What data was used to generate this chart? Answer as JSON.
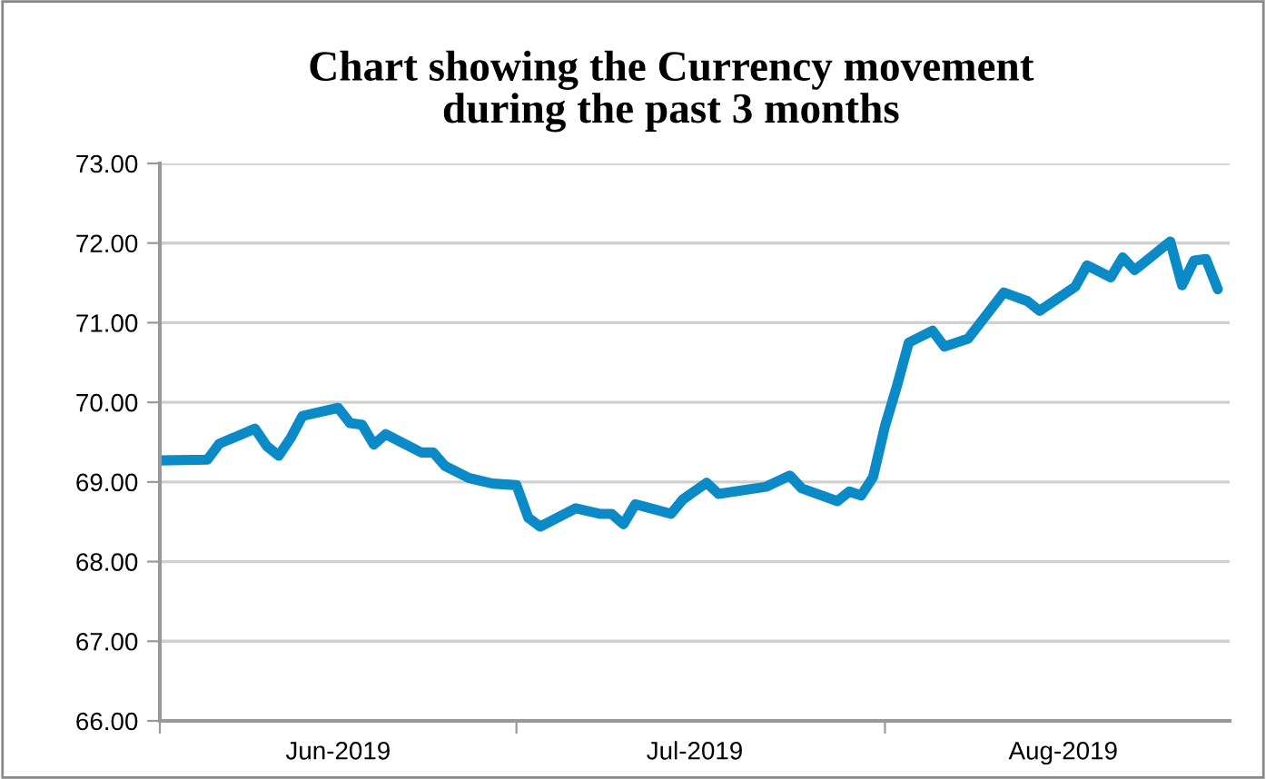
{
  "chart_data": {
    "type": "line",
    "title": "Chart showing the Currency movement\nduring the past 3 months",
    "x": [
      "2019-06-01",
      "2019-06-05",
      "2019-06-06",
      "2019-06-09",
      "2019-06-10",
      "2019-06-11",
      "2019-06-12",
      "2019-06-13",
      "2019-06-16",
      "2019-06-17",
      "2019-06-18",
      "2019-06-19",
      "2019-06-20",
      "2019-06-23",
      "2019-06-24",
      "2019-06-25",
      "2019-06-27",
      "2019-06-29",
      "2019-07-01",
      "2019-07-02",
      "2019-07-03",
      "2019-07-06",
      "2019-07-08",
      "2019-07-09",
      "2019-07-10",
      "2019-07-11",
      "2019-07-14",
      "2019-07-15",
      "2019-07-17",
      "2019-07-18",
      "2019-07-22",
      "2019-07-24",
      "2019-07-25",
      "2019-07-28",
      "2019-07-29",
      "2019-07-30",
      "2019-07-31",
      "2019-08-01",
      "2019-08-02",
      "2019-08-03",
      "2019-08-05",
      "2019-08-06",
      "2019-08-08",
      "2019-08-11",
      "2019-08-13",
      "2019-08-14",
      "2019-08-17",
      "2019-08-18",
      "2019-08-20",
      "2019-08-21",
      "2019-08-22",
      "2019-08-25",
      "2019-08-26",
      "2019-08-27",
      "2019-08-28",
      "2019-08-29"
    ],
    "series": [
      {
        "color": "#0a8ac6",
        "values": [
          69.27,
          69.28,
          69.48,
          69.67,
          69.45,
          69.33,
          69.55,
          69.83,
          69.93,
          69.74,
          69.72,
          69.47,
          69.6,
          69.37,
          69.37,
          69.2,
          69.05,
          68.98,
          68.96,
          68.55,
          68.44,
          68.67,
          68.6,
          68.6,
          68.47,
          68.72,
          68.6,
          68.78,
          68.99,
          68.85,
          68.94,
          69.08,
          68.92,
          68.76,
          68.88,
          68.83,
          69.06,
          69.7,
          70.2,
          70.75,
          70.9,
          70.7,
          70.8,
          71.38,
          71.27,
          71.15,
          71.45,
          71.72,
          71.57,
          71.82,
          71.66,
          72.02,
          71.47,
          71.78,
          71.8,
          71.42
        ]
      }
    ],
    "xlim": [
      "2019-06-01",
      "2019-08-30"
    ],
    "xticks": [
      {
        "value": "2019-06-01",
        "label": null
      },
      {
        "value": "2019-06-16",
        "label": "Jun-2019"
      },
      {
        "value": "2019-07-01",
        "label": null
      },
      {
        "value": "2019-07-16",
        "label": "Jul-2019"
      },
      {
        "value": "2019-08-01",
        "label": null
      },
      {
        "value": "2019-08-16",
        "label": "Aug-2019"
      }
    ],
    "ylim": [
      66,
      73
    ],
    "yticks": [
      {
        "value": 66,
        "label": "66.00"
      },
      {
        "value": 67,
        "label": "67.00"
      },
      {
        "value": 68,
        "label": "68.00"
      },
      {
        "value": 69,
        "label": "69.00"
      },
      {
        "value": 70,
        "label": "70.00"
      },
      {
        "value": 71,
        "label": "71.00"
      },
      {
        "value": 72,
        "label": "72.00"
      },
      {
        "value": 73,
        "label": "73.00"
      }
    ],
    "grid": "y",
    "marker": "none",
    "line_style": "solid"
  }
}
